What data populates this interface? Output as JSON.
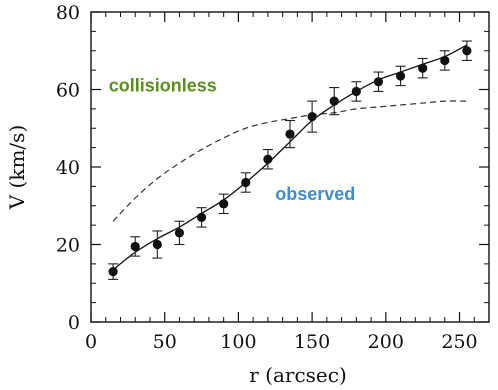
{
  "chart_data": {
    "type": "scatter",
    "xlabel": "r (arcsec)",
    "ylabel": "V (km/s)",
    "xlim": [
      0,
      270
    ],
    "ylim": [
      0,
      80
    ],
    "xticks": [
      0,
      50,
      100,
      150,
      200,
      250
    ],
    "yticks": [
      0,
      20,
      40,
      60,
      80
    ],
    "grid": false,
    "series": [
      {
        "style": "points-with-errorbars",
        "color": "#111111",
        "points": [
          {
            "x": 15,
            "y": 13,
            "err": 2
          },
          {
            "x": 30,
            "y": 19.5,
            "err": 2.5
          },
          {
            "x": 45,
            "y": 20,
            "err": 3.5
          },
          {
            "x": 60,
            "y": 23,
            "err": 3
          },
          {
            "x": 75,
            "y": 27,
            "err": 2.5
          },
          {
            "x": 90,
            "y": 30.5,
            "err": 2.5
          },
          {
            "x": 105,
            "y": 36,
            "err": 2.5
          },
          {
            "x": 120,
            "y": 42,
            "err": 2.5
          },
          {
            "x": 135,
            "y": 48.5,
            "err": 3.5
          },
          {
            "x": 150,
            "y": 53,
            "err": 4
          },
          {
            "x": 165,
            "y": 57,
            "err": 3.5
          },
          {
            "x": 180,
            "y": 59.5,
            "err": 2.5
          },
          {
            "x": 195,
            "y": 62,
            "err": 2.5
          },
          {
            "x": 210,
            "y": 63.5,
            "err": 2.5
          },
          {
            "x": 225,
            "y": 65.5,
            "err": 2.5
          },
          {
            "x": 240,
            "y": 67.5,
            "err": 2.5
          },
          {
            "x": 255,
            "y": 70,
            "err": 2.5
          }
        ]
      },
      {
        "style": "solid-line",
        "color": "#111111",
        "x": [
          15,
          30,
          45,
          60,
          75,
          90,
          105,
          120,
          135,
          150,
          165,
          180,
          195,
          210,
          225,
          240,
          255
        ],
        "y": [
          13.5,
          18,
          21.5,
          24.5,
          28,
          31.5,
          36,
          41,
          46.5,
          52,
          56,
          59.5,
          62.5,
          64.5,
          66.5,
          68.5,
          71.5
        ]
      },
      {
        "style": "dashed-line",
        "color": "#333333",
        "x": [
          15,
          30,
          45,
          60,
          75,
          90,
          105,
          120,
          135,
          150,
          165,
          180,
          195,
          210,
          225,
          240,
          255
        ],
        "y": [
          26,
          32,
          37,
          41,
          44.5,
          47.5,
          50,
          51.5,
          52.5,
          53.5,
          54,
          55,
          55.5,
          56,
          56.5,
          57,
          57
        ]
      }
    ],
    "annotations": [
      {
        "text": "collisionless",
        "x": 12,
        "y": 59.5,
        "color": "#5a8f1e"
      },
      {
        "text": "observed",
        "x": 125,
        "y": 31.5,
        "color": "#3b8fd0"
      }
    ]
  }
}
